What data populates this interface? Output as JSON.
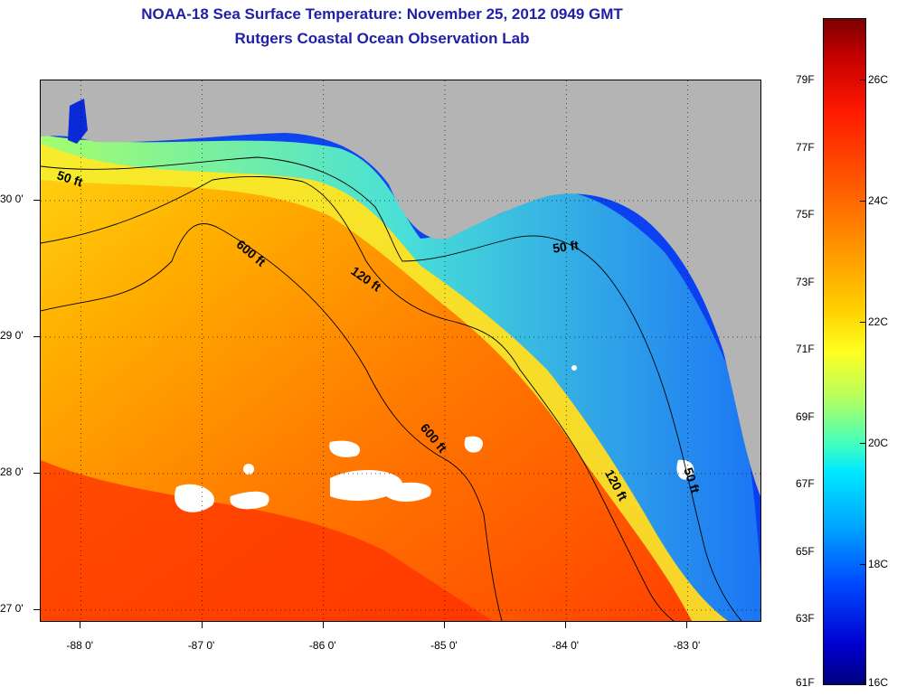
{
  "title": "NOAA-18 Sea Surface Temperature:  November 25, 2012 0949 GMT",
  "subtitle": "Rutgers Coastal Ocean Observation Lab",
  "map": {
    "lon_range": [
      -88.33,
      -82.4
    ],
    "lat_range": [
      26.92,
      30.88
    ],
    "lon_ticks": [
      {
        "value": -88,
        "label": "-88 0'"
      },
      {
        "value": -87,
        "label": "-87 0'"
      },
      {
        "value": -86,
        "label": "-86 0'"
      },
      {
        "value": -85,
        "label": "-85 0'"
      },
      {
        "value": -84,
        "label": "-84 0'"
      },
      {
        "value": -83,
        "label": "-83 0'"
      }
    ],
    "lat_ticks": [
      {
        "value": 30,
        "label": "30 0'"
      },
      {
        "value": 29,
        "label": "29 0'"
      },
      {
        "value": 28,
        "label": "28 0'"
      },
      {
        "value": 27,
        "label": "27 0'"
      }
    ],
    "land_color": "#b4b4b4",
    "gridlines": "dotted",
    "depth_contour_labels": [
      {
        "text": "50 ft",
        "lon": -88.1,
        "lat": 30.13,
        "rotate": 18
      },
      {
        "text": "600 ft",
        "lon": -86.62,
        "lat": 29.59,
        "rotate": 40
      },
      {
        "text": "120 ft",
        "lon": -85.67,
        "lat": 29.4,
        "rotate": 35
      },
      {
        "text": "50 ft",
        "lon": -84.0,
        "lat": 29.63,
        "rotate": -8
      },
      {
        "text": "600 ft",
        "lon": -85.12,
        "lat": 28.24,
        "rotate": 50
      },
      {
        "text": "120 ft",
        "lon": -83.62,
        "lat": 27.9,
        "rotate": 62
      },
      {
        "text": "50 ft",
        "lon": -83.0,
        "lat": 27.94,
        "rotate": 72
      }
    ]
  },
  "colorbar": {
    "fahrenheit_labels": [
      "79F",
      "77F",
      "75F",
      "73F",
      "71F",
      "69F",
      "67F",
      "65F",
      "63F",
      "61F"
    ],
    "celsius_labels": [
      "26C",
      "24C",
      "22C",
      "20C",
      "18C",
      "16C"
    ],
    "range_c": [
      16,
      27
    ]
  }
}
